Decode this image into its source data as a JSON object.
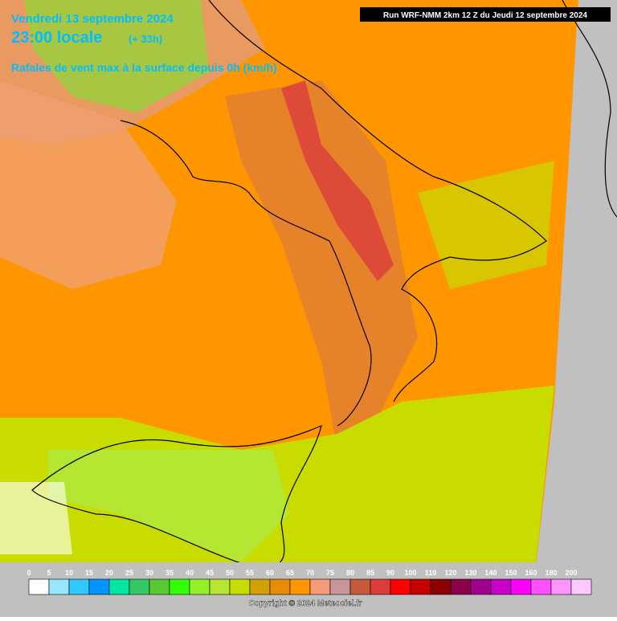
{
  "header": {
    "date": "Vendredi 13 septembre 2024",
    "time": "23:00 locale",
    "offset": "(+ 33h)",
    "field": "Rafales de vent max à la surface depuis 0h (km/h)",
    "run": "Run WRF-NMM 2km 12 Z du Jeudi 12 septembre 2024"
  },
  "legend": {
    "labels": [
      "0",
      "5",
      "10",
      "15",
      "20",
      "25",
      "30",
      "35",
      "40",
      "45",
      "50",
      "55",
      "60",
      "65",
      "70",
      "75",
      "80",
      "85",
      "90",
      "100",
      "110",
      "120",
      "130",
      "140",
      "150",
      "160",
      "180",
      "200"
    ],
    "colors": [
      "#ffffff",
      "#96e6ff",
      "#32c8ff",
      "#0096ff",
      "#00e6a0",
      "#32c864",
      "#5ac832",
      "#32ff00",
      "#96f028",
      "#b4e632",
      "#c8dc00",
      "#d2a000",
      "#e68c00",
      "#ff9600",
      "#f89a78",
      "#c89696",
      "#c85a3c",
      "#dc3c3c",
      "#ff0000",
      "#c80000",
      "#8c0000",
      "#8c004c",
      "#a0008c",
      "#c800c8",
      "#ff00ff",
      "#ff50ff",
      "#ff96ff",
      "#ffc8ff"
    ],
    "end_color": "#ffffff"
  },
  "footer": {
    "copyright": "Copyright © 2024 Meteociel.fr"
  }
}
